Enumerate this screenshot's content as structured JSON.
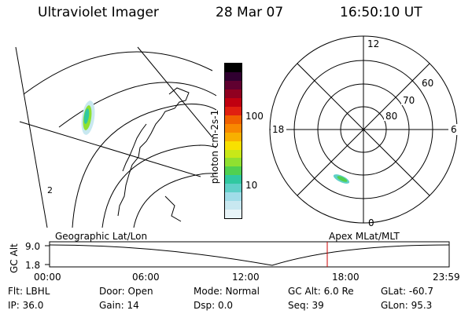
{
  "header": {
    "title": "Ultraviolet Imager",
    "date": "28 Mar 07",
    "time": "16:50:10 UT"
  },
  "colorbar": {
    "label": "photon cm-2s-1",
    "ticks": [
      "100",
      "10"
    ],
    "colors": [
      "#e8f4f8",
      "#c8e8f0",
      "#a0dce8",
      "#60d0c8",
      "#30c8a0",
      "#50d050",
      "#90e030",
      "#c8e818",
      "#f8e000",
      "#f8b000",
      "#f88800",
      "#f06000",
      "#e02010",
      "#c00010",
      "#900020",
      "#600030",
      "#300030",
      "#000000"
    ]
  },
  "geo_map": {
    "label": "Geographic Lat/Lon",
    "marker": "2"
  },
  "polar_plot": {
    "label": "Apex MLat/MLT",
    "mlt_labels": [
      "12",
      "18",
      "6",
      "0"
    ],
    "mlat_labels": [
      "60",
      "70",
      "80"
    ]
  },
  "gc_alt_plot": {
    "ylabel": "GC Alt",
    "yticks": [
      "9.0",
      "1.8"
    ],
    "xticks": [
      "00:00",
      "06:00",
      "12:00",
      "18:00",
      "23:59"
    ],
    "current_time_marker": "16:50",
    "marker_color": "#cc0000"
  },
  "info": {
    "flt": "Flt: LBHL",
    "ip": "IP: 36.0",
    "door": "Door: Open",
    "gain": "Gain: 14",
    "mode": "Mode: Normal",
    "dsp": "Dsp:    0.0",
    "gcalt": "GC Alt: 6.0 Re",
    "seq": "Seq: 39",
    "glat": "GLat: -60.7",
    "glon": "GLon:  95.3"
  }
}
